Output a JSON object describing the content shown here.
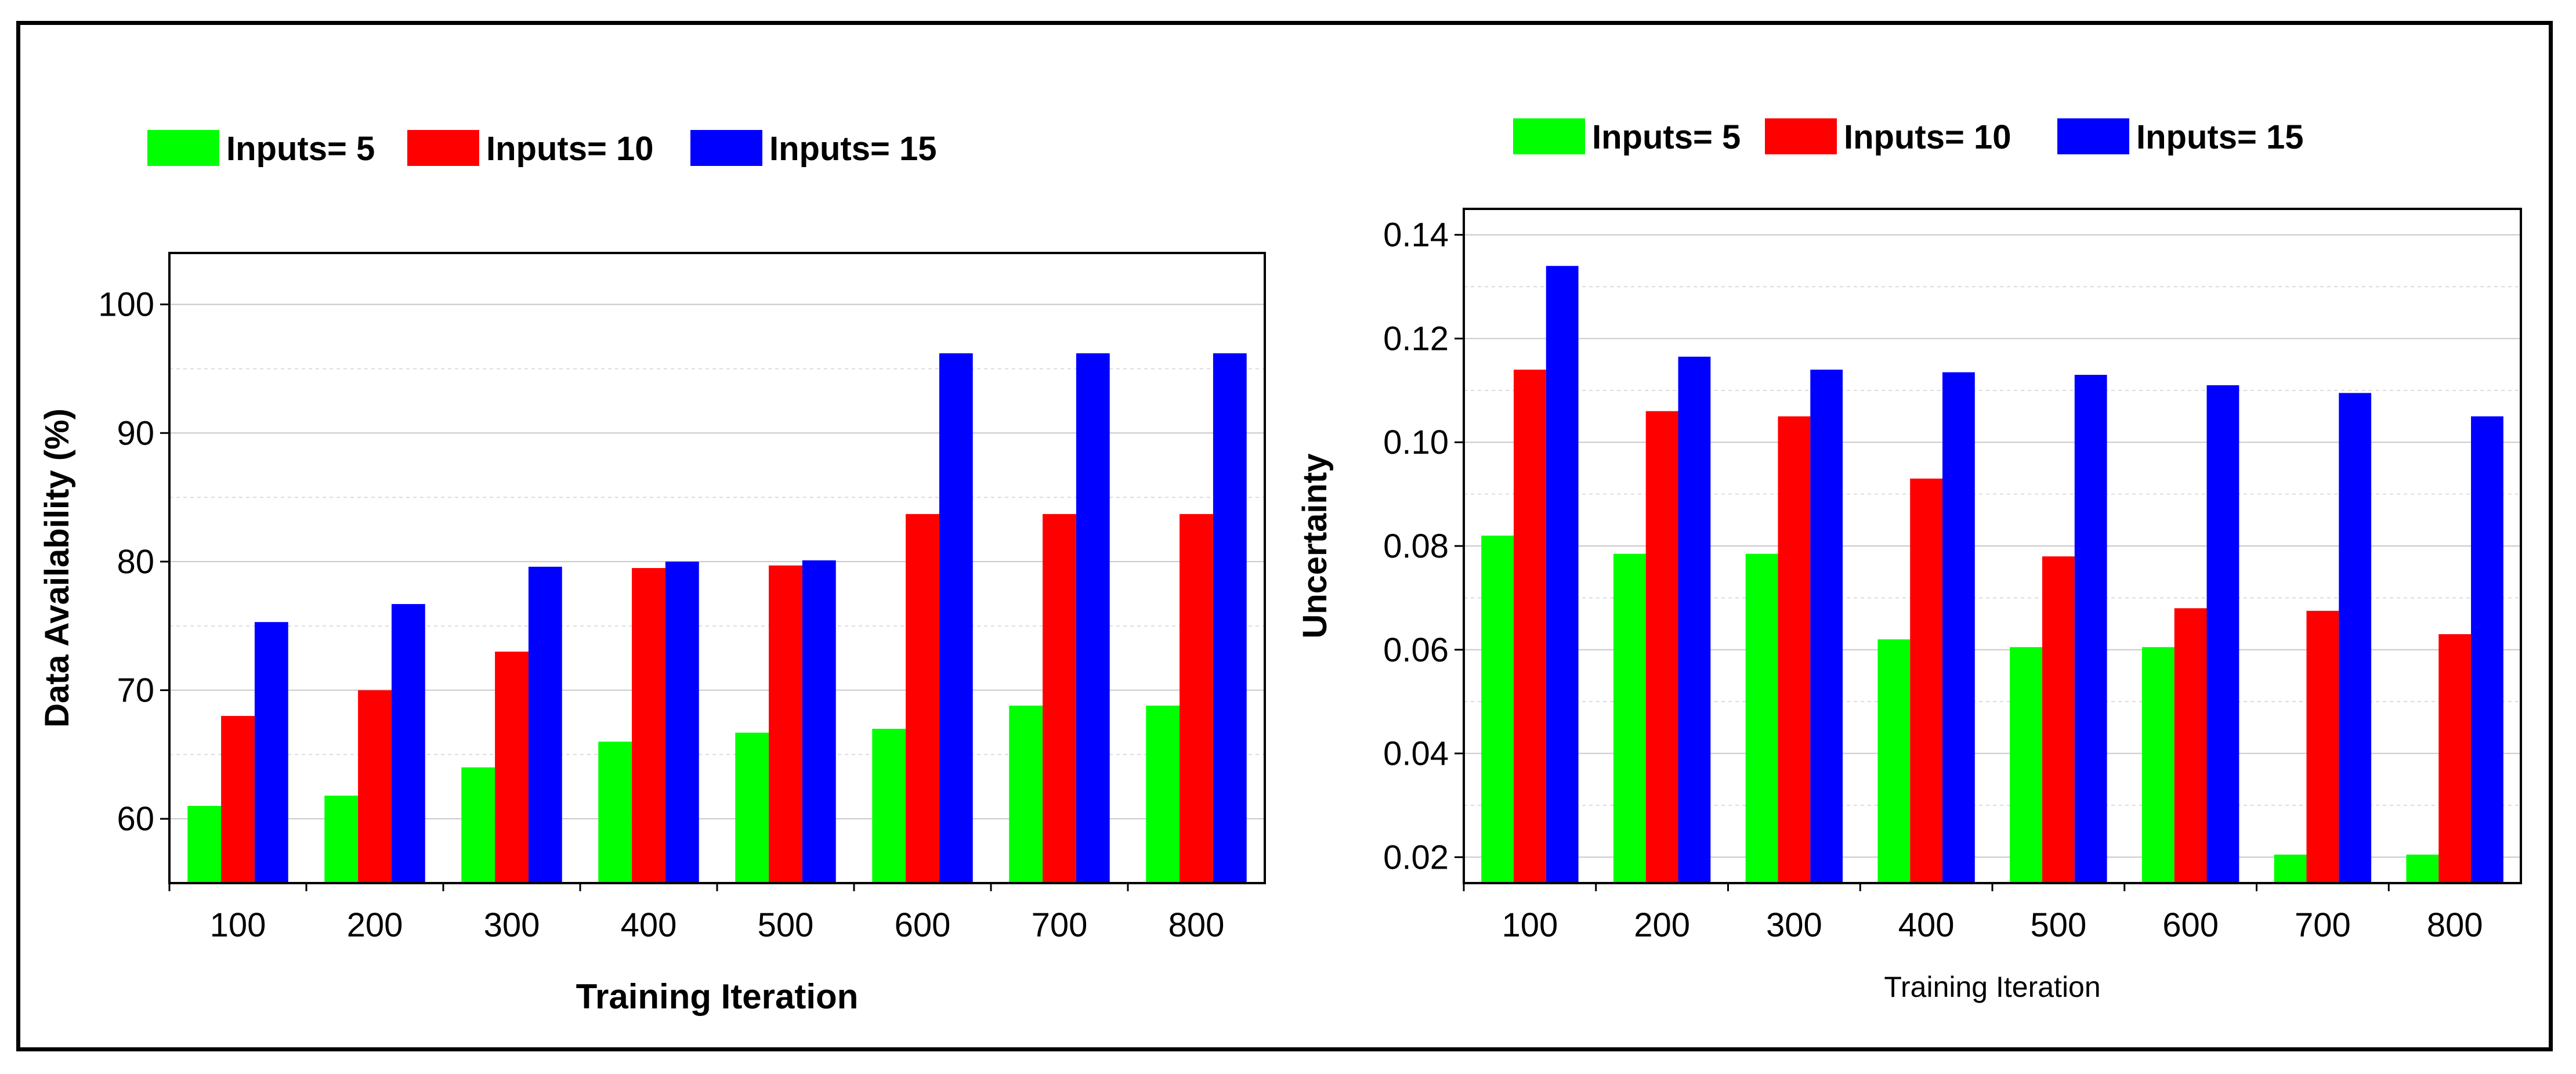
{
  "colors": {
    "series": [
      "#00ff00",
      "#ff0000",
      "#0000ff"
    ],
    "grid_major": "#c8c8c8",
    "grid_minor": "#dcdcdc",
    "axis": "#000000"
  },
  "chart_data": [
    {
      "type": "bar",
      "title": "",
      "xlabel": "Training Iteration",
      "ylabel": "Data Availability (%)",
      "categories": [
        "100",
        "200",
        "300",
        "400",
        "500",
        "600",
        "700",
        "800"
      ],
      "ylim": [
        55,
        104
      ],
      "yticks": [
        60,
        70,
        80,
        90,
        100
      ],
      "ytick_labels": [
        "60",
        "70",
        "80",
        "90",
        "100"
      ],
      "grid": true,
      "legend_position": "top-left, above plot",
      "series": [
        {
          "name": "Inputs= 5",
          "values": [
            61,
            61.8,
            64,
            66,
            66.7,
            67,
            68.8,
            68.8
          ]
        },
        {
          "name": "Inputs= 10",
          "values": [
            68,
            70,
            73,
            79.5,
            79.7,
            83.7,
            83.7,
            83.7
          ]
        },
        {
          "name": "Inputs= 15",
          "values": [
            75.3,
            76.7,
            79.6,
            80,
            80.1,
            96.2,
            96.2,
            96.2
          ]
        }
      ]
    },
    {
      "type": "bar",
      "title": "",
      "xlabel": "Training Iteration",
      "ylabel": "Uncertainty",
      "categories": [
        "100",
        "200",
        "300",
        "400",
        "500",
        "600",
        "700",
        "800"
      ],
      "ylim": [
        0.015,
        0.145
      ],
      "yticks": [
        0.02,
        0.04,
        0.06,
        0.08,
        0.1,
        0.12,
        0.14
      ],
      "ytick_labels": [
        "0.02",
        "0.04",
        "0.06",
        "0.08",
        "0.10",
        "0.12",
        "0.14"
      ],
      "grid": true,
      "legend_position": "top-left, above plot",
      "series": [
        {
          "name": "Inputs= 5",
          "values": [
            0.082,
            0.0785,
            0.0785,
            0.062,
            0.0605,
            0.0605,
            0.0205,
            0.0205
          ]
        },
        {
          "name": "Inputs= 10",
          "values": [
            0.114,
            0.106,
            0.105,
            0.093,
            0.078,
            0.068,
            0.0675,
            0.063
          ]
        },
        {
          "name": "Inputs= 15",
          "values": [
            0.134,
            0.1165,
            0.114,
            0.1135,
            0.113,
            0.111,
            0.1095,
            0.105
          ]
        }
      ]
    }
  ]
}
